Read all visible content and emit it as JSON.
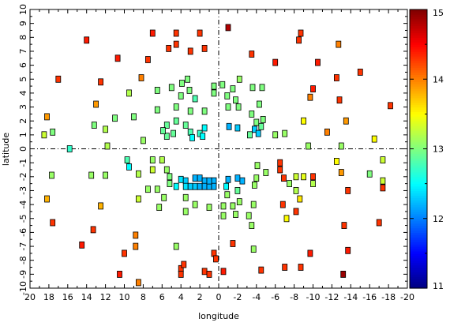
{
  "chart_data": {
    "type": "scatter",
    "xlabel": "longitude",
    "ylabel": "latitude",
    "xlim": [
      20,
      -20
    ],
    "ylim": [
      -10,
      10
    ],
    "x_ticks": [
      20,
      18,
      16,
      14,
      12,
      10,
      8,
      6,
      4,
      2,
      0,
      -2,
      -4,
      -6,
      -8,
      -10,
      -12,
      -14,
      -16,
      -18,
      -20
    ],
    "x_tick_labels": [
      "20",
      "18",
      "16",
      "14",
      "12",
      "10",
      "8",
      "6",
      "4",
      "2",
      "0",
      "-2",
      "-4",
      "-6",
      "-8",
      "-10",
      "-12",
      "-14",
      "-16",
      "-18",
      "-20"
    ],
    "y_ticks": [
      -10,
      -9,
      -8,
      -7,
      -6,
      -5,
      -4,
      -3,
      -2,
      -1,
      0,
      1,
      2,
      3,
      4,
      5,
      6,
      7,
      8,
      9,
      10
    ],
    "y_tick_labels": [
      "-10",
      "-9",
      "-8",
      "-7",
      "-6",
      "-5",
      "-4",
      "-3",
      "-2",
      "-1",
      "0",
      "1",
      "2",
      "3",
      "4",
      "5",
      "6",
      "7",
      "8",
      "9",
      "10"
    ],
    "reference_lines": [
      {
        "axis": "x",
        "value": 0,
        "style": "dash-dot"
      },
      {
        "axis": "y",
        "value": 0,
        "style": "dash-dot"
      }
    ],
    "colorbar": {
      "min": 11,
      "max": 15,
      "ticks": [
        11,
        12,
        13,
        14,
        15
      ],
      "tick_labels": [
        "11",
        "12",
        "13",
        "14",
        "15"
      ],
      "colormap": "jet"
    },
    "points": [
      {
        "x": -1,
        "y": 8.7,
        "v": 14.8
      },
      {
        "x": 14,
        "y": 7.8,
        "v": 14.4
      },
      {
        "x": 7,
        "y": 8.3,
        "v": 14.4
      },
      {
        "x": 4.5,
        "y": 8.3,
        "v": 14.3
      },
      {
        "x": 2,
        "y": 8.3,
        "v": 14.3
      },
      {
        "x": -8.7,
        "y": 8.3,
        "v": 14.3
      },
      {
        "x": -8.5,
        "y": 7.8,
        "v": 14.3
      },
      {
        "x": 4.5,
        "y": 7.5,
        "v": 14.3
      },
      {
        "x": 5.3,
        "y": 7.2,
        "v": 14.3
      },
      {
        "x": 1.5,
        "y": 7.2,
        "v": 14.3
      },
      {
        "x": 3,
        "y": 7,
        "v": 14.3
      },
      {
        "x": -3.5,
        "y": 6.8,
        "v": 14.3
      },
      {
        "x": 7.5,
        "y": 6.4,
        "v": 14.3
      },
      {
        "x": 10.7,
        "y": 6.5,
        "v": 14.4
      },
      {
        "x": -6,
        "y": 6.2,
        "v": 14.4
      },
      {
        "x": -10.5,
        "y": 6.2,
        "v": 14.4
      },
      {
        "x": -12.7,
        "y": 7.5,
        "v": 14
      },
      {
        "x": 8.2,
        "y": 5.1,
        "v": 14
      },
      {
        "x": -12.5,
        "y": 5.1,
        "v": 14.3
      },
      {
        "x": -15,
        "y": 5.5,
        "v": 14.3
      },
      {
        "x": 17,
        "y": 5,
        "v": 14.3
      },
      {
        "x": 12.5,
        "y": 4.8,
        "v": 14.3
      },
      {
        "x": -10,
        "y": 4.3,
        "v": 14.4
      },
      {
        "x": -9.7,
        "y": 3.7,
        "v": 14
      },
      {
        "x": -12.8,
        "y": 3.5,
        "v": 14.3
      },
      {
        "x": 13,
        "y": 3.2,
        "v": 13.9
      },
      {
        "x": -18.2,
        "y": 3.1,
        "v": 14.3
      },
      {
        "x": 18.2,
        "y": 2.3,
        "v": 13.9
      },
      {
        "x": -13.5,
        "y": 2,
        "v": 13.9
      },
      {
        "x": -9,
        "y": 2,
        "v": 13.5
      },
      {
        "x": -11.5,
        "y": 1.2,
        "v": 14
      },
      {
        "x": 18.5,
        "y": 1,
        "v": 13.3
      },
      {
        "x": 9.5,
        "y": 4,
        "v": 13.2
      },
      {
        "x": 6.5,
        "y": 4.2,
        "v": 13
      },
      {
        "x": 5,
        "y": 4.4,
        "v": 13
      },
      {
        "x": 3.9,
        "y": 4.7,
        "v": 13
      },
      {
        "x": 3.3,
        "y": 5,
        "v": 13
      },
      {
        "x": 3.1,
        "y": 4.2,
        "v": 13
      },
      {
        "x": 4,
        "y": 3.8,
        "v": 13
      },
      {
        "x": 2.5,
        "y": 3.6,
        "v": 12.8
      },
      {
        "x": 0.5,
        "y": 4.5,
        "v": 13
      },
      {
        "x": 0.5,
        "y": 4,
        "v": 13
      },
      {
        "x": -0.4,
        "y": 4.6,
        "v": 13
      },
      {
        "x": -1.5,
        "y": 4.3,
        "v": 13
      },
      {
        "x": -2.2,
        "y": 5,
        "v": 13.1
      },
      {
        "x": -0.9,
        "y": 3.8,
        "v": 13
      },
      {
        "x": -1.8,
        "y": 3.5,
        "v": 13
      },
      {
        "x": -3.6,
        "y": 4.4,
        "v": 13
      },
      {
        "x": -4.6,
        "y": 4.4,
        "v": 13
      },
      {
        "x": -1,
        "y": 3,
        "v": 13
      },
      {
        "x": -2.1,
        "y": 3,
        "v": 13
      },
      {
        "x": -4.3,
        "y": 3.2,
        "v": 13
      },
      {
        "x": 1.5,
        "y": 2.7,
        "v": 13
      },
      {
        "x": 3,
        "y": 2.7,
        "v": 13
      },
      {
        "x": 4.5,
        "y": 3,
        "v": 13
      },
      {
        "x": 6.5,
        "y": 2.8,
        "v": 13
      },
      {
        "x": 9,
        "y": 2.3,
        "v": 13
      },
      {
        "x": 11,
        "y": 2.2,
        "v": 13
      },
      {
        "x": 13.2,
        "y": 1.7,
        "v": 13
      },
      {
        "x": 17.6,
        "y": 1.2,
        "v": 13
      },
      {
        "x": -3.5,
        "y": 2.5,
        "v": 13
      },
      {
        "x": -4.7,
        "y": 2.1,
        "v": 13
      },
      {
        "x": -4,
        "y": 1.9,
        "v": 13
      },
      {
        "x": 4.5,
        "y": 2,
        "v": 12.9
      },
      {
        "x": 3.5,
        "y": 1.7,
        "v": 12.9
      },
      {
        "x": 5.5,
        "y": 1.7,
        "v": 12.9
      },
      {
        "x": 3,
        "y": 1.2,
        "v": 12.8
      },
      {
        "x": 2,
        "y": 1.1,
        "v": 12.7
      },
      {
        "x": 1.5,
        "y": 1.5,
        "v": 12.5
      },
      {
        "x": 4.8,
        "y": 1.1,
        "v": 12.9
      },
      {
        "x": 5.5,
        "y": 0.9,
        "v": 12.9
      },
      {
        "x": 5.9,
        "y": 1.3,
        "v": 12.9
      },
      {
        "x": 2.8,
        "y": 0.8,
        "v": 12.5
      },
      {
        "x": 1.7,
        "y": 0.9,
        "v": 12.5
      },
      {
        "x": -1.1,
        "y": 1.6,
        "v": 12.2
      },
      {
        "x": -2,
        "y": 1.5,
        "v": 12.3
      },
      {
        "x": -3.8,
        "y": 1.4,
        "v": 12.3
      },
      {
        "x": -4.2,
        "y": 1.1,
        "v": 12.3
      },
      {
        "x": -3.3,
        "y": 1,
        "v": 12.9
      },
      {
        "x": -4.5,
        "y": 1.6,
        "v": 12.9
      },
      {
        "x": -6,
        "y": 1,
        "v": 13.1
      },
      {
        "x": -7,
        "y": 1.1,
        "v": 13.1
      },
      {
        "x": 8,
        "y": 0.6,
        "v": 13.1
      },
      {
        "x": 11.8,
        "y": 0.2,
        "v": 13.2
      },
      {
        "x": 15.8,
        "y": 0,
        "v": 12.7
      },
      {
        "x": 12,
        "y": 1.4,
        "v": 13.2
      },
      {
        "x": -16.5,
        "y": 0.7,
        "v": 13.5
      },
      {
        "x": -13,
        "y": 0.2,
        "v": 13.1
      },
      {
        "x": -9.5,
        "y": 0.2,
        "v": 13.1
      },
      {
        "x": -17.4,
        "y": -0.8,
        "v": 13.3
      },
      {
        "x": -12.5,
        "y": -0.9,
        "v": 13.5
      },
      {
        "x": -13,
        "y": -1.7,
        "v": 13.9
      },
      {
        "x": -16,
        "y": -1.8,
        "v": 13
      },
      {
        "x": -17.4,
        "y": -2.3,
        "v": 13.3
      },
      {
        "x": -6.5,
        "y": -1,
        "v": 14.3
      },
      {
        "x": -6.5,
        "y": -1.5,
        "v": 14.3
      },
      {
        "x": -6.9,
        "y": -2.1,
        "v": 14.3
      },
      {
        "x": -8.2,
        "y": -2,
        "v": 13.3
      },
      {
        "x": -9,
        "y": -2,
        "v": 13.4
      },
      {
        "x": -10,
        "y": -2,
        "v": 14.3
      },
      {
        "x": -5,
        "y": -1.7,
        "v": 13.1
      },
      {
        "x": -4,
        "y": -2.1,
        "v": 13.1
      },
      {
        "x": -4.1,
        "y": -1.2,
        "v": 13.1
      },
      {
        "x": -3.8,
        "y": -2.6,
        "v": 13.1
      },
      {
        "x": -7.5,
        "y": -2.5,
        "v": 13.1
      },
      {
        "x": -8.2,
        "y": -3,
        "v": 13.2
      },
      {
        "x": -10,
        "y": -2.5,
        "v": 13.2
      },
      {
        "x": -13.7,
        "y": -3,
        "v": 14.3
      },
      {
        "x": -17.4,
        "y": -2.8,
        "v": 14.3
      },
      {
        "x": -8.6,
        "y": -3.6,
        "v": 13.6
      },
      {
        "x": 9.7,
        "y": -0.8,
        "v": 12.8
      },
      {
        "x": 9.5,
        "y": -1.3,
        "v": 12.5
      },
      {
        "x": 7,
        "y": -0.8,
        "v": 13.1
      },
      {
        "x": 6,
        "y": -0.8,
        "v": 13.2
      },
      {
        "x": 8.5,
        "y": -1.8,
        "v": 13.2
      },
      {
        "x": 7,
        "y": -1.5,
        "v": 13.3
      },
      {
        "x": 5.5,
        "y": -1.5,
        "v": 13.1
      },
      {
        "x": 5.2,
        "y": -2,
        "v": 13
      },
      {
        "x": 5.2,
        "y": -2.5,
        "v": 13
      },
      {
        "x": 4.5,
        "y": -2.7,
        "v": 12.5
      },
      {
        "x": 4,
        "y": -2.2,
        "v": 12.4
      },
      {
        "x": 3.5,
        "y": -2.3,
        "v": 12.3
      },
      {
        "x": 3.5,
        "y": -2.7,
        "v": 12.4
      },
      {
        "x": 3,
        "y": -2.7,
        "v": 12.3
      },
      {
        "x": 2.5,
        "y": -2.7,
        "v": 12.3
      },
      {
        "x": 2.5,
        "y": -2.1,
        "v": 12.2
      },
      {
        "x": 2,
        "y": -2.1,
        "v": 12.2
      },
      {
        "x": 2,
        "y": -2.7,
        "v": 12.2
      },
      {
        "x": 1.5,
        "y": -2.3,
        "v": 12.2
      },
      {
        "x": 1.5,
        "y": -2.7,
        "v": 12.2
      },
      {
        "x": 1,
        "y": -2.7,
        "v": 12.2
      },
      {
        "x": 0.5,
        "y": -2.3,
        "v": 12.2
      },
      {
        "x": -1,
        "y": -2.2,
        "v": 12.2
      },
      {
        "x": -2,
        "y": -2.1,
        "v": 12.2
      },
      {
        "x": -2.5,
        "y": -2.3,
        "v": 12.2
      },
      {
        "x": -0.8,
        "y": -2.7,
        "v": 12.5
      },
      {
        "x": -2,
        "y": -3,
        "v": 12.9
      },
      {
        "x": 0.5,
        "y": -2.7,
        "v": 12.2
      },
      {
        "x": 1,
        "y": -2.3,
        "v": 12.2
      },
      {
        "x": 7.5,
        "y": -2.9,
        "v": 13.1
      },
      {
        "x": 3.5,
        "y": -3.5,
        "v": 13.1
      },
      {
        "x": 5.8,
        "y": -3.5,
        "v": 13.1
      },
      {
        "x": 6.3,
        "y": -4.2,
        "v": 13.1
      },
      {
        "x": 3.5,
        "y": -4.5,
        "v": 13.1
      },
      {
        "x": 2.5,
        "y": -4,
        "v": 13.1
      },
      {
        "x": 1,
        "y": -4.2,
        "v": 13.1
      },
      {
        "x": -0.5,
        "y": -4.1,
        "v": 13.1
      },
      {
        "x": -1.5,
        "y": -4.1,
        "v": 13.1
      },
      {
        "x": -0.9,
        "y": -3.3,
        "v": 13.1
      },
      {
        "x": -1.8,
        "y": -4.7,
        "v": 13.1
      },
      {
        "x": -2.2,
        "y": -3.8,
        "v": 13.1
      },
      {
        "x": -3.7,
        "y": -4,
        "v": 13.1
      },
      {
        "x": -3.2,
        "y": -4.8,
        "v": 13.1
      },
      {
        "x": -0.5,
        "y": -4.8,
        "v": 13.1
      },
      {
        "x": -3.5,
        "y": -5.5,
        "v": 13.1
      },
      {
        "x": -7.2,
        "y": -5,
        "v": 13.5
      },
      {
        "x": -8.2,
        "y": -4.5,
        "v": 14.3
      },
      {
        "x": -6.8,
        "y": -4,
        "v": 14.3
      },
      {
        "x": 12.5,
        "y": -4.1,
        "v": 13.8
      },
      {
        "x": 8.5,
        "y": -3.6,
        "v": 13.3
      },
      {
        "x": 6.5,
        "y": -2.9,
        "v": 13.1
      },
      {
        "x": 13.5,
        "y": -1.9,
        "v": 13.1
      },
      {
        "x": 12,
        "y": -1.9,
        "v": 13.1
      },
      {
        "x": 17.7,
        "y": -1.9,
        "v": 13.1
      },
      {
        "x": 18.2,
        "y": -3.6,
        "v": 13.8
      },
      {
        "x": 17.6,
        "y": -5.3,
        "v": 14.3
      },
      {
        "x": -13.3,
        "y": -5.5,
        "v": 14.3
      },
      {
        "x": -17,
        "y": -5.3,
        "v": 14.3
      },
      {
        "x": 13.3,
        "y": -5.8,
        "v": 14.3
      },
      {
        "x": 14.5,
        "y": -6.9,
        "v": 14.4
      },
      {
        "x": 8.8,
        "y": -6.2,
        "v": 14
      },
      {
        "x": 8.8,
        "y": -7,
        "v": 14
      },
      {
        "x": 10,
        "y": -7.5,
        "v": 14.3
      },
      {
        "x": 4.5,
        "y": -7,
        "v": 13.1
      },
      {
        "x": 0.5,
        "y": -7.5,
        "v": 14.3
      },
      {
        "x": 0.3,
        "y": -7.9,
        "v": 14.3
      },
      {
        "x": -1.5,
        "y": -6.8,
        "v": 14.3
      },
      {
        "x": -3.7,
        "y": -7.2,
        "v": 13.1
      },
      {
        "x": -9.7,
        "y": -7.5,
        "v": 14.4
      },
      {
        "x": -13.7,
        "y": -7.3,
        "v": 14.4
      },
      {
        "x": 4,
        "y": -8.6,
        "v": 14.3
      },
      {
        "x": 4,
        "y": -9,
        "v": 14.3
      },
      {
        "x": 1.5,
        "y": -8.8,
        "v": 14.3
      },
      {
        "x": 3.7,
        "y": -8.3,
        "v": 14.3
      },
      {
        "x": -0.5,
        "y": -8.8,
        "v": 14.4
      },
      {
        "x": -4.5,
        "y": -8.7,
        "v": 14.3
      },
      {
        "x": -7,
        "y": -8.5,
        "v": 14.3
      },
      {
        "x": -8.7,
        "y": -8.5,
        "v": 14.3
      },
      {
        "x": 10.5,
        "y": -9,
        "v": 14.4
      },
      {
        "x": 8.5,
        "y": -9.6,
        "v": 14
      },
      {
        "x": -13.2,
        "y": -9,
        "v": 14.9
      },
      {
        "x": 1,
        "y": -9,
        "v": 14.3
      }
    ]
  }
}
